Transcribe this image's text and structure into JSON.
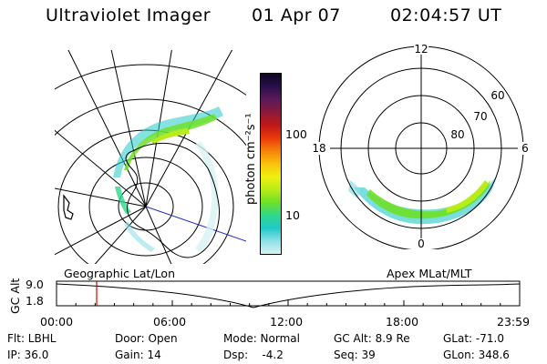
{
  "header": {
    "title": "Ultraviolet Imager",
    "date": "01 Apr 07",
    "time": "02:04:57 UT"
  },
  "colorbar": {
    "unit_label": "photon cm⁻²s⁻¹",
    "ticks": [
      "100",
      "10"
    ],
    "colors": [
      "#0d0722",
      "#2a0f4a",
      "#5a1a5a",
      "#8a1a3a",
      "#c01818",
      "#e83a0c",
      "#f7820a",
      "#f7c20a",
      "#f0f010",
      "#b8ec18",
      "#6ee028",
      "#2ed88c",
      "#22c8c8",
      "#8ee0e6",
      "#d8f2f4"
    ]
  },
  "polar_plot": {
    "mlt_labels": [
      "12",
      "18",
      "6",
      "0"
    ],
    "lat_labels": [
      "60",
      "70",
      "80"
    ]
  },
  "timeline": {
    "ylabel": "GC Alt",
    "ticks_y": [
      "9.0",
      "1.8"
    ],
    "left_caption": "Geographic Lat/Lon",
    "right_caption": "Apex MLat/MLT",
    "time_ticks": [
      "00:00",
      "06:00",
      "12:00",
      "18:00",
      "23:59"
    ],
    "marker_time_hours": 2.08,
    "marker_color": "#e00000"
  },
  "info": {
    "filter": "Flt: LBHL",
    "door": "Door: Open",
    "mode": "Mode: Normal",
    "gc_alt": "GC Alt: 8.9 Re",
    "glat": "GLat: -71.0",
    "ip": "IP: 36.0",
    "gain": "Gain: 14",
    "dsp": "Dsp:    -4.2",
    "seq": "Seq: 39",
    "glon": "GLon: 348.6"
  }
}
